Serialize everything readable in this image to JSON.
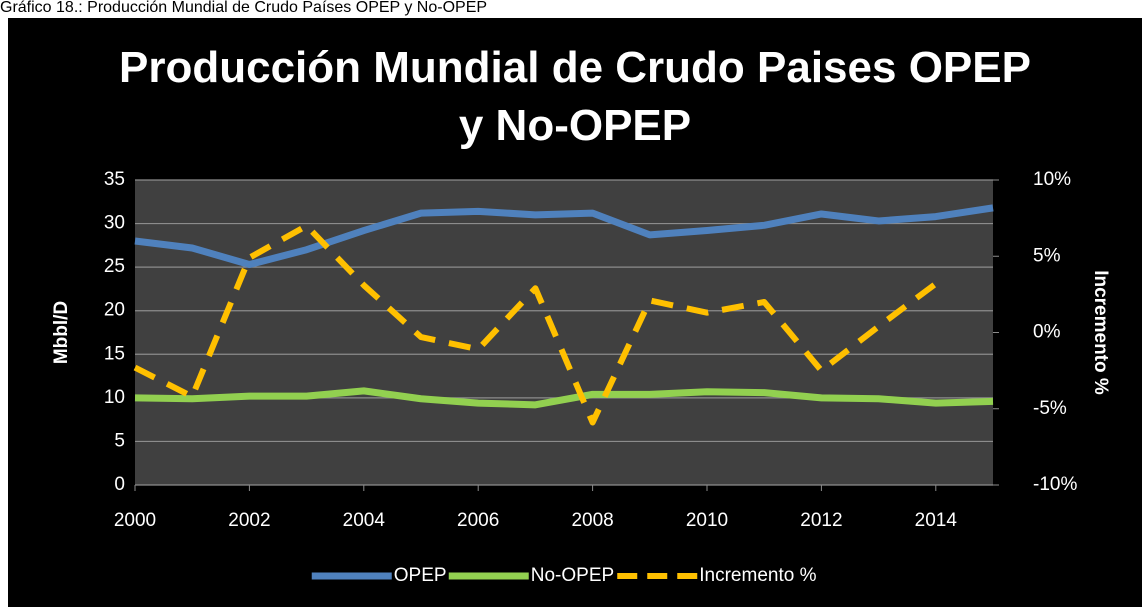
{
  "caption": "Gráfico 18.: Producción Mundial de Crudo Países OPEP y No-OPEP",
  "chart_data": {
    "type": "line",
    "title": "Producción Mundial de Crudo Paises OPEP y No-OPEP",
    "y_label": "Mbbl/D",
    "y2_label": "Incremento %",
    "x": [
      2000,
      2001,
      2002,
      2003,
      2004,
      2005,
      2006,
      2007,
      2008,
      2009,
      2010,
      2011,
      2012,
      2013,
      2014,
      2015
    ],
    "xlim": [
      2000,
      2015
    ],
    "xticks": [
      2000,
      2002,
      2004,
      2006,
      2008,
      2010,
      2012,
      2014
    ],
    "ylim": [
      0,
      35
    ],
    "yticks": [
      0,
      5,
      10,
      15,
      20,
      25,
      30,
      35
    ],
    "y2lim": [
      -10,
      10
    ],
    "y2ticks": [
      {
        "value": -10,
        "label": "-10%"
      },
      {
        "value": -5,
        "label": "-5%"
      },
      {
        "value": 0,
        "label": "0%"
      },
      {
        "value": 5,
        "label": "5%"
      },
      {
        "value": 10,
        "label": "10%"
      }
    ],
    "grid": true,
    "legend": "bottom",
    "series": [
      {
        "name": "OPEP",
        "color": "#4f81bd",
        "values": [
          28,
          27.2,
          25.3,
          27,
          29.2,
          31.2,
          31.4,
          31,
          31.2,
          28.7,
          29.2,
          29.8,
          31.1,
          30.3,
          30.8,
          31.8
        ]
      },
      {
        "name": "No-OPEP",
        "color": "#92d050",
        "values": [
          10,
          9.9,
          10.2,
          10.2,
          10.8,
          9.9,
          9.4,
          9.2,
          10.4,
          10.4,
          10.7,
          10.6,
          10,
          9.9,
          9.4,
          9.6
        ]
      },
      {
        "name": "Incremento %",
        "color": "#ffc000",
        "axis": "y2",
        "dashed": true,
        "values": [
          -2.3,
          -4.2,
          4.9,
          7,
          3.1,
          -0.3,
          -1.1,
          2.9,
          -5.9,
          2.1,
          1.3,
          2,
          -2.5,
          0.4,
          3.2,
          null
        ]
      }
    ]
  }
}
